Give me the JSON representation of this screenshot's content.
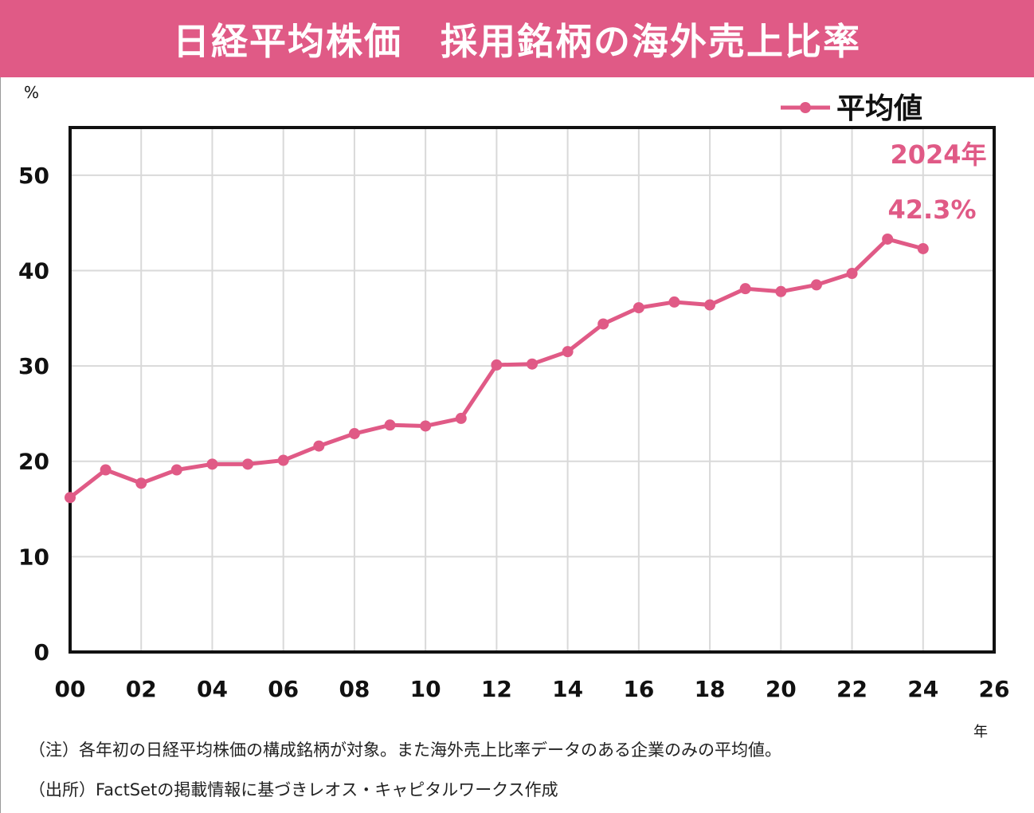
{
  "header": {
    "title": "日経平均株価　採用銘柄の海外売上比率"
  },
  "axis": {
    "y_unit": "%",
    "x_unit": "年"
  },
  "notes": {
    "note1": "（注）各年初の日経平均株価の構成銘柄が対象。また海外売上比率データのある企業のみの平均値。",
    "note2": "（出所）FactSetの掲載情報に基づきレオス・キャピタルワークス作成"
  },
  "colors": {
    "series": "#e05a86",
    "title_bg": "#e05a86",
    "grid": "#d9d9d9",
    "axis": "#111111"
  },
  "chart_data": {
    "type": "line",
    "title": "日経平均株価　採用銘柄の海外売上比率",
    "ylabel": "%",
    "xlabel": "年",
    "xlim": [
      2000,
      2026
    ],
    "ylim": [
      0,
      55
    ],
    "x_ticks": [
      2000,
      2002,
      2004,
      2006,
      2008,
      2010,
      2012,
      2014,
      2016,
      2018,
      2020,
      2022,
      2024,
      2026
    ],
    "x_tick_labels": [
      "00",
      "02",
      "04",
      "06",
      "08",
      "10",
      "12",
      "14",
      "16",
      "18",
      "20",
      "22",
      "24",
      "26"
    ],
    "y_ticks": [
      0,
      10,
      20,
      30,
      40,
      50
    ],
    "y_tick_labels": [
      "0",
      "10",
      "20",
      "30",
      "40",
      "50"
    ],
    "grid": true,
    "legend_position": "top-right",
    "series": [
      {
        "name": "平均値",
        "x": [
          2000,
          2001,
          2002,
          2003,
          2004,
          2005,
          2006,
          2007,
          2008,
          2009,
          2010,
          2011,
          2012,
          2013,
          2014,
          2015,
          2016,
          2017,
          2018,
          2019,
          2020,
          2021,
          2022,
          2023,
          2024
        ],
        "values": [
          16.2,
          19.1,
          17.7,
          19.1,
          19.7,
          19.7,
          20.1,
          21.6,
          22.9,
          23.8,
          23.7,
          24.5,
          30.1,
          30.2,
          31.5,
          34.4,
          36.1,
          36.7,
          36.4,
          38.1,
          37.8,
          38.5,
          39.7,
          43.3,
          42.3
        ]
      }
    ],
    "annotation": {
      "year_label": "2024年",
      "value_label": "42.3%"
    }
  }
}
